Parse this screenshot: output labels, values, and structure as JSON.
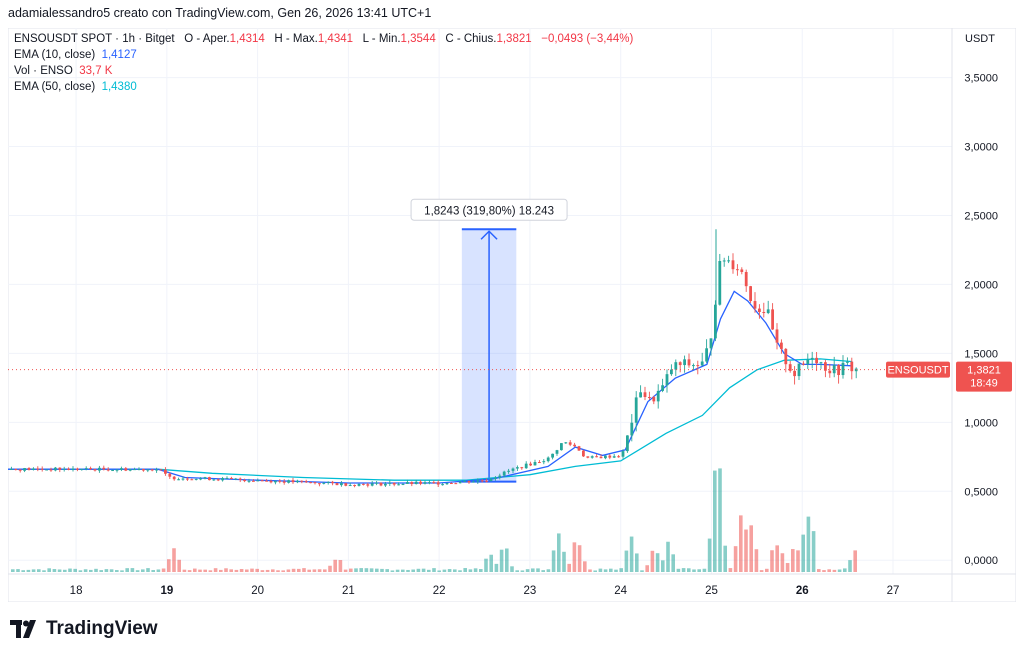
{
  "header": {
    "creator_line": "adamialessandro5 creato con TradingView.com, Gen 26, 2026 13:41 UTC+1"
  },
  "legend": {
    "symbol_line": "ENSOUSDT SPOT · 1h · Bitget",
    "o_label": "O - Aper.",
    "o_value": "1,4314",
    "h_label": "H - Max.",
    "h_value": "1,4341",
    "l_label": "L - Min.",
    "l_value": "1,3544",
    "c_label": "C - Chius.",
    "c_value": "1,3821",
    "change": "−0,0493 (−3,44%)",
    "ema10_label": "EMA (10, close)",
    "ema10_value": "1,4127",
    "vol_label": "Vol · ENSO",
    "vol_value": "33,7 K",
    "ema50_label": "EMA (50, close)",
    "ema50_value": "1,4380"
  },
  "axis": {
    "currency": "USDT"
  },
  "price_tag": {
    "symbol": "ENSOUSDT",
    "price": "1,3821",
    "timer": "18:49"
  },
  "measure_label": "1,8243 (319,80%) 18.243",
  "branding": {
    "name": "TradingView"
  },
  "colors": {
    "up": "#26a69a",
    "down": "#ef5350",
    "ema10": "#2962ff",
    "ema50": "#00bcd4",
    "measure": "#2962ff"
  },
  "chart_data": {
    "type": "candlestick",
    "ylim": [
      -0.1,
      3.7
    ],
    "y_ticks": [
      "0,0000",
      "0,5000",
      "1,0000",
      "1,5000",
      "2,0000",
      "2,5000",
      "3,0000",
      "3,5000"
    ],
    "y_tick_values": [
      0,
      0.5,
      1,
      1.5,
      2,
      2.5,
      3,
      3.5
    ],
    "x_ticks": [
      "18",
      "19",
      "20",
      "21",
      "22",
      "23",
      "24",
      "25",
      "26",
      "27"
    ],
    "x_tick_days": [
      18,
      19,
      20,
      21,
      22,
      23,
      24,
      25,
      26,
      27
    ],
    "x_range_days": [
      17.25,
      27.65
    ],
    "last_price": 1.3821,
    "measure": {
      "start_day": 22.25,
      "end_day": 22.85,
      "low": 0.57,
      "high": 2.4
    },
    "price_path": [
      [
        17.25,
        0.66
      ],
      [
        18.9,
        0.66
      ],
      [
        19.0,
        0.6
      ],
      [
        20.0,
        0.58
      ],
      [
        21.0,
        0.55
      ],
      [
        22.0,
        0.56
      ],
      [
        22.5,
        0.58
      ],
      [
        22.8,
        0.66
      ],
      [
        23.2,
        0.74
      ],
      [
        23.35,
        0.86
      ],
      [
        23.5,
        0.82
      ],
      [
        23.6,
        0.74
      ],
      [
        24.0,
        0.76
      ],
      [
        24.1,
        1.0
      ],
      [
        24.2,
        1.25
      ],
      [
        24.3,
        1.15
      ],
      [
        24.45,
        1.25
      ],
      [
        24.55,
        1.4
      ],
      [
        24.7,
        1.42
      ],
      [
        24.9,
        1.42
      ],
      [
        25.0,
        1.7
      ],
      [
        25.05,
        2.05
      ],
      [
        25.1,
        2.2
      ],
      [
        25.3,
        2.12
      ],
      [
        25.45,
        1.85
      ],
      [
        25.6,
        1.8
      ],
      [
        25.7,
        1.55
      ],
      [
        25.8,
        1.45
      ],
      [
        25.9,
        1.35
      ],
      [
        26.0,
        1.42
      ],
      [
        26.1,
        1.5
      ],
      [
        26.2,
        1.42
      ],
      [
        26.35,
        1.37
      ],
      [
        26.5,
        1.42
      ],
      [
        26.55,
        1.38
      ]
    ],
    "ema10_path": [
      [
        17.25,
        0.66
      ],
      [
        18.9,
        0.66
      ],
      [
        19.2,
        0.6
      ],
      [
        20.0,
        0.58
      ],
      [
        21.0,
        0.56
      ],
      [
        22.0,
        0.56
      ],
      [
        22.6,
        0.59
      ],
      [
        23.2,
        0.68
      ],
      [
        23.5,
        0.82
      ],
      [
        23.8,
        0.76
      ],
      [
        24.05,
        0.8
      ],
      [
        24.3,
        1.15
      ],
      [
        24.6,
        1.32
      ],
      [
        24.95,
        1.42
      ],
      [
        25.1,
        1.75
      ],
      [
        25.25,
        1.95
      ],
      [
        25.4,
        1.88
      ],
      [
        25.6,
        1.72
      ],
      [
        25.8,
        1.5
      ],
      [
        26.0,
        1.42
      ],
      [
        26.2,
        1.42
      ],
      [
        26.55,
        1.41
      ]
    ],
    "ema50_path": [
      [
        17.25,
        0.66
      ],
      [
        18.9,
        0.66
      ],
      [
        19.5,
        0.63
      ],
      [
        20.5,
        0.6
      ],
      [
        21.5,
        0.58
      ],
      [
        22.3,
        0.58
      ],
      [
        23.0,
        0.62
      ],
      [
        23.5,
        0.68
      ],
      [
        24.0,
        0.72
      ],
      [
        24.5,
        0.92
      ],
      [
        24.9,
        1.05
      ],
      [
        25.2,
        1.25
      ],
      [
        25.5,
        1.38
      ],
      [
        25.8,
        1.45
      ],
      [
        26.2,
        1.46
      ],
      [
        26.55,
        1.44
      ]
    ],
    "volume_bursts": [
      [
        19.05,
        0.9
      ],
      [
        20.85,
        0.55
      ],
      [
        22.55,
        0.7
      ],
      [
        22.7,
        0.85
      ],
      [
        23.3,
        1.45
      ],
      [
        23.5,
        1.25
      ],
      [
        24.1,
        1.6
      ],
      [
        24.35,
        0.9
      ],
      [
        24.5,
        0.95
      ],
      [
        25.05,
        3.7
      ],
      [
        25.3,
        1.7
      ],
      [
        25.4,
        1.9
      ],
      [
        25.7,
        1.3
      ],
      [
        25.9,
        1.15
      ],
      [
        26.05,
        2.1
      ],
      [
        26.55,
        0.85
      ]
    ]
  }
}
